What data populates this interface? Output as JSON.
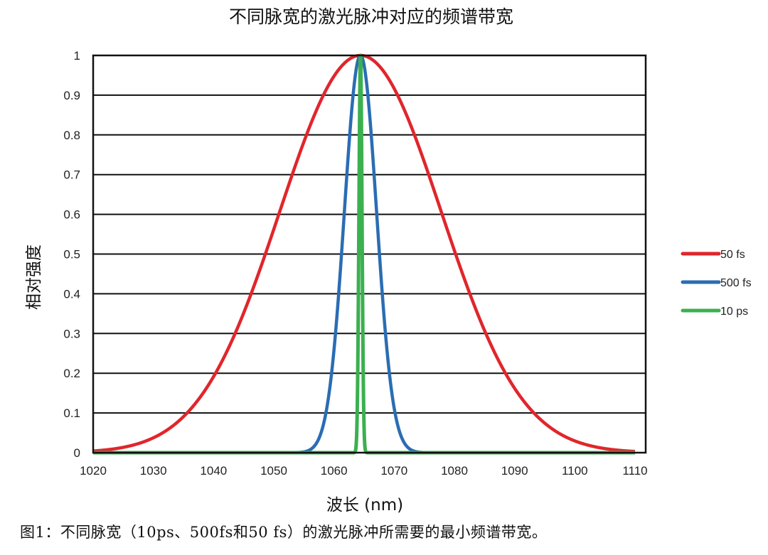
{
  "chart_data": {
    "type": "line",
    "title": "不同脉宽的激光脉冲对应的频谱带宽",
    "xlabel": "波长 (nm)",
    "ylabel": "相对强度",
    "xlim": [
      1020,
      1110
    ],
    "ylim": [
      0,
      1
    ],
    "xticks": [
      "1020",
      "1030",
      "1040",
      "1050",
      "1060",
      "1070",
      "1080",
      "1090",
      "1100",
      "1110"
    ],
    "yticks": [
      "0",
      "0.1",
      "0.2",
      "0.3",
      "0.4",
      "0.5",
      "0.6",
      "0.7",
      "0.8",
      "0.9",
      "1"
    ],
    "grid": "horizontal",
    "legend_position": "right",
    "series": [
      {
        "name": "50 fs",
        "color": "#e0262c",
        "shape": "gaussian",
        "center_nm": 1064.4,
        "fwhm_nm": 31.6,
        "peak": 1
      },
      {
        "name": "500 fs",
        "color": "#2a6db3",
        "shape": "gaussian",
        "center_nm": 1064.4,
        "fwhm_nm": 6.3,
        "peak": 1
      },
      {
        "name": "10 ps",
        "color": "#3bb04f",
        "shape": "gaussian",
        "center_nm": 1064.4,
        "fwhm_nm": 0.6,
        "peak": 1
      }
    ]
  },
  "caption": "图1：不同脉宽（10ps、500fs和50 fs）的激光脉冲所需要的最小频谱带宽。"
}
